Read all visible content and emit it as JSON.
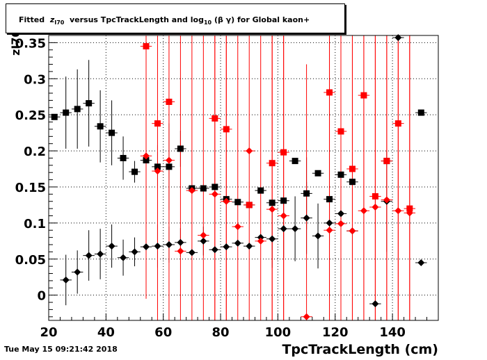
{
  "canvas": {
    "timestamp": "Tue May 15 09:21:42 2018"
  },
  "title": {
    "prefix": "Fitted",
    "z": "z",
    "z_sub": "I70",
    "mid": "versus TpcTrackLength and log",
    "log_sub": "10",
    "suffix": "(β γ) for Global kaon+"
  },
  "chart_data": {
    "type": "scatter",
    "title": "Fitted z_I70 versus TpcTrackLength and log10 (β γ) for Global kaon+",
    "xlabel": "TpcTrackLength (cm)",
    "ylabel": "z_I70",
    "xlim": [
      20,
      156
    ],
    "ylim": [
      -0.035,
      0.36
    ],
    "x_ticks": [
      20,
      40,
      60,
      80,
      100,
      120,
      140
    ],
    "y_ticks": [
      0,
      0.05,
      0.1,
      0.15,
      0.2,
      0.25,
      0.3,
      0.35
    ],
    "y_tick_labels": [
      "0",
      "0.05",
      "0.1",
      "0.15",
      "0.2",
      "0.25",
      "0.3",
      "0.35"
    ],
    "grid": true,
    "colors": {
      "black": "#000000",
      "red": "#ff0000"
    },
    "series": [
      {
        "marker": "square",
        "color": "#000000",
        "points": [
          [
            22,
            0.247,
            0.0
          ],
          [
            26,
            0.253,
            0.05
          ],
          [
            30,
            0.258,
            0.055
          ],
          [
            34,
            0.266,
            0.06
          ],
          [
            38,
            0.234,
            0.05
          ],
          [
            42,
            0.225,
            0.045
          ],
          [
            46,
            0.19,
            0.03
          ],
          [
            50,
            0.171,
            0.015
          ],
          [
            54,
            0.187,
            0.04
          ],
          [
            58,
            0.178,
            0.03
          ],
          [
            62,
            0.178,
            0.06
          ],
          [
            66,
            0.203,
            0.025
          ],
          [
            70,
            0.148,
            0.0
          ],
          [
            74,
            0.148,
            0.0
          ],
          [
            78,
            0.15,
            0.0
          ],
          [
            82,
            0.133,
            0.0
          ],
          [
            86,
            0.129,
            0.0
          ],
          [
            90,
            0.125,
            0.0
          ],
          [
            94,
            0.145,
            0.0
          ],
          [
            98,
            0.128,
            0.0
          ],
          [
            102,
            0.131,
            0.0
          ],
          [
            106,
            0.186,
            0.0
          ],
          [
            110,
            0.141,
            0.05
          ],
          [
            114,
            0.169,
            0.0
          ],
          [
            118,
            0.133,
            0.0
          ],
          [
            122,
            0.167,
            0.0
          ],
          [
            126,
            0.157,
            0.0
          ],
          [
            138,
            0.186,
            0.0
          ],
          [
            150,
            0.253,
            0.0
          ]
        ]
      },
      {
        "marker": "diamond",
        "color": "#000000",
        "points": [
          [
            26,
            0.021,
            0.035
          ],
          [
            30,
            0.032,
            0.03
          ],
          [
            34,
            0.055,
            0.035
          ],
          [
            38,
            0.057,
            0.035
          ],
          [
            42,
            0.068,
            0.03
          ],
          [
            46,
            0.052,
            0.025
          ],
          [
            50,
            0.06,
            0.02
          ],
          [
            54,
            0.067,
            0.025
          ],
          [
            58,
            0.068,
            0.03
          ],
          [
            62,
            0.07,
            0.025
          ],
          [
            66,
            0.073,
            0.02
          ],
          [
            70,
            0.059,
            0.0
          ],
          [
            74,
            0.075,
            0.02
          ],
          [
            78,
            0.063,
            0.0
          ],
          [
            82,
            0.067,
            0.0
          ],
          [
            86,
            0.072,
            0.0
          ],
          [
            90,
            0.068,
            0.0
          ],
          [
            94,
            0.08,
            0.0
          ],
          [
            98,
            0.078,
            0.04
          ],
          [
            102,
            0.092,
            0.04
          ],
          [
            106,
            0.092,
            0.045
          ],
          [
            110,
            0.107,
            0.05
          ],
          [
            114,
            0.082,
            0.045
          ],
          [
            118,
            0.1,
            0.03
          ],
          [
            122,
            0.113,
            0.05
          ],
          [
            126,
            0.089,
            0.0
          ],
          [
            134,
            -0.012,
            0.0
          ],
          [
            138,
            0.13,
            0.07
          ],
          [
            142,
            0.357,
            0.0
          ],
          [
            150,
            0.045,
            0.0
          ]
        ]
      },
      {
        "marker": "square",
        "color": "#ff0000",
        "points": [
          [
            54,
            0.345,
            0.35
          ],
          [
            58,
            0.238,
            0.35
          ],
          [
            62,
            0.268,
            0.35
          ],
          [
            78,
            0.245,
            0.35
          ],
          [
            82,
            0.23,
            0.35
          ],
          [
            90,
            0.125,
            0.0
          ],
          [
            98,
            0.183,
            0.35
          ],
          [
            102,
            0.198,
            0.35
          ],
          [
            118,
            0.281,
            0.35
          ],
          [
            122,
            0.227,
            0.35
          ],
          [
            126,
            0.175,
            0.35
          ],
          [
            130,
            0.277,
            0.35
          ],
          [
            134,
            0.137,
            0.35
          ],
          [
            138,
            0.186,
            0.35
          ],
          [
            142,
            0.238,
            0.35
          ],
          [
            146,
            0.12,
            0.35
          ]
        ]
      },
      {
        "marker": "diamond",
        "color": "#ff0000",
        "points": [
          [
            54,
            0.193,
            0.0
          ],
          [
            58,
            0.172,
            0.0
          ],
          [
            62,
            0.187,
            0.0
          ],
          [
            66,
            0.061,
            0.35
          ],
          [
            70,
            0.145,
            0.35
          ],
          [
            74,
            0.083,
            0.35
          ],
          [
            78,
            0.14,
            0.35
          ],
          [
            82,
            0.13,
            0.35
          ],
          [
            86,
            0.095,
            0.35
          ],
          [
            90,
            0.2,
            0.35
          ],
          [
            94,
            0.075,
            0.35
          ],
          [
            98,
            0.119,
            0.35
          ],
          [
            102,
            0.11,
            0.35
          ],
          [
            110,
            -0.03,
            0.35
          ],
          [
            118,
            0.09,
            0.35
          ],
          [
            122,
            0.099,
            0.35
          ],
          [
            126,
            0.089,
            0.35
          ],
          [
            130,
            0.117,
            0.35
          ],
          [
            134,
            0.122,
            0.35
          ],
          [
            138,
            0.132,
            0.35
          ],
          [
            142,
            0.117,
            0.35
          ],
          [
            146,
            0.114,
            0.35
          ]
        ]
      }
    ]
  }
}
